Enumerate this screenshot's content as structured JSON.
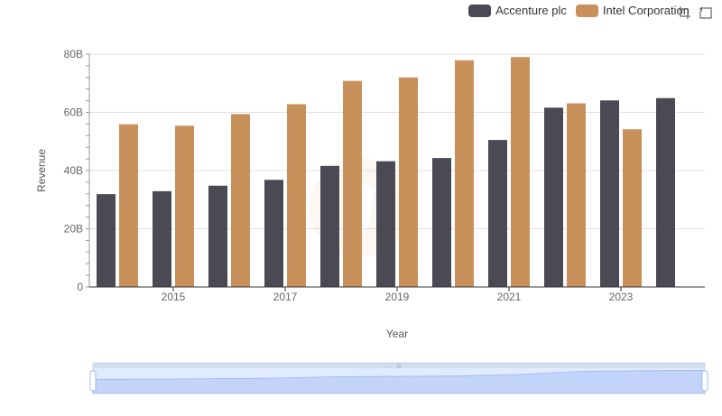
{
  "chart_data": {
    "type": "bar",
    "title": "",
    "xlabel": "Year",
    "ylabel": "Revenue",
    "ylim": [
      0,
      80000000000
    ],
    "yticks": [
      {
        "value": 0,
        "label": "0"
      },
      {
        "value": 20000000000,
        "label": "20B"
      },
      {
        "value": 40000000000,
        "label": "40B"
      },
      {
        "value": 60000000000,
        "label": "60B"
      },
      {
        "value": 80000000000,
        "label": "80B"
      }
    ],
    "categories": [
      "2014",
      "2015",
      "2016",
      "2017",
      "2018",
      "2019",
      "2020",
      "2021",
      "2022",
      "2023",
      "2024"
    ],
    "xtick_labels": [
      "2015",
      "2017",
      "2019",
      "2021",
      "2023"
    ],
    "series": [
      {
        "name": "Accenture plc",
        "color": "#4a4954",
        "values": [
          31900000000,
          32900000000,
          34800000000,
          36800000000,
          41600000000,
          43200000000,
          44300000000,
          50500000000,
          61600000000,
          64100000000,
          64900000000
        ]
      },
      {
        "name": "Intel Corporation",
        "color": "#c8915c",
        "values": [
          55900000000,
          55400000000,
          59400000000,
          62800000000,
          70800000000,
          72000000000,
          77900000000,
          79000000000,
          63100000000,
          54200000000,
          null
        ]
      }
    ],
    "legend_position": "top-right",
    "grid": true
  },
  "toolbox": {
    "zoom_icon": "zoom-icon",
    "restore_icon": "restore-icon"
  },
  "datazoom": {
    "start_percent": 0,
    "end_percent": 100
  }
}
